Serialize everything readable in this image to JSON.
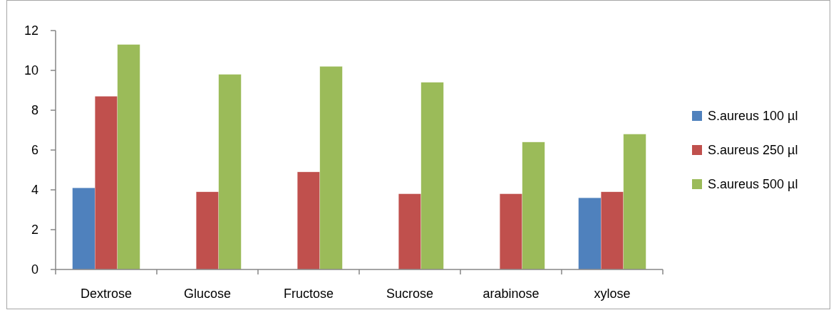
{
  "chart_data": {
    "type": "bar",
    "categories": [
      "Dextrose",
      "Glucose",
      "Fructose",
      "Sucrose",
      "arabinose",
      "xylose"
    ],
    "series": [
      {
        "name": "S.aureus 100 µl",
        "color": "#4f81bd",
        "values": [
          4.1,
          null,
          null,
          null,
          null,
          3.6
        ]
      },
      {
        "name": "S.aureus 250 µl",
        "color": "#c0504d",
        "values": [
          8.7,
          3.9,
          4.9,
          3.8,
          3.8,
          3.9
        ]
      },
      {
        "name": "S.aureus 500 µl",
        "color": "#9bbb59",
        "values": [
          11.3,
          9.8,
          10.2,
          9.4,
          6.4,
          6.8
        ]
      }
    ],
    "ylim": [
      0,
      12
    ],
    "yticks": [
      0,
      2,
      4,
      6,
      8,
      10,
      12
    ],
    "grid": false,
    "legend": "right"
  }
}
